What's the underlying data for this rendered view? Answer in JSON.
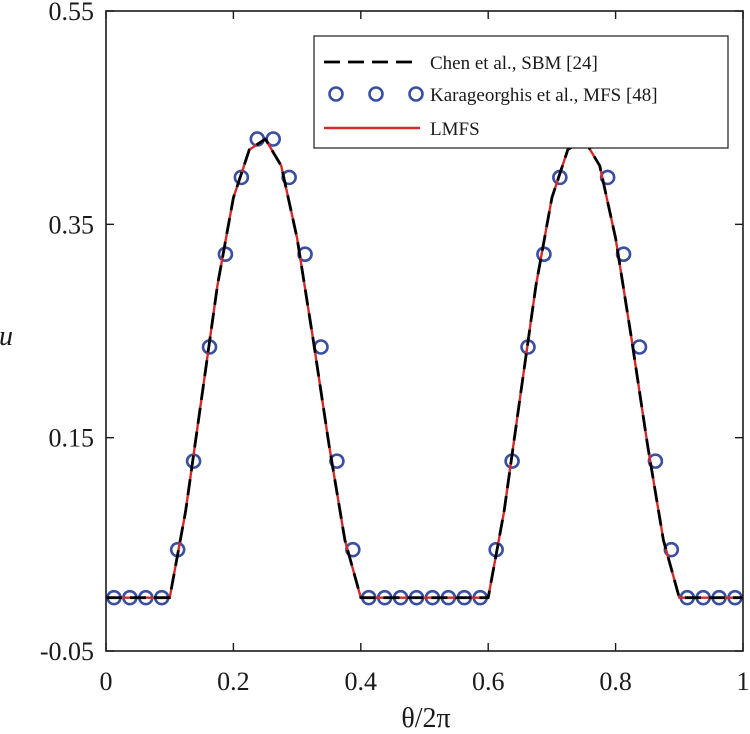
{
  "chart_data": {
    "type": "line",
    "xlabel": "θ/2π",
    "ylabel": "u",
    "xlim": [
      0,
      1
    ],
    "ylim": [
      -0.05,
      0.55
    ],
    "xticks": [
      0,
      0.2,
      0.4,
      0.6,
      0.8,
      1
    ],
    "xtick_labels": [
      "0",
      "0.2",
      "0.4",
      "0.6",
      "0.8",
      "1"
    ],
    "yticks": [
      -0.05,
      0.15,
      0.35,
      0.55
    ],
    "ytick_labels": [
      "-0.05",
      "0.15",
      "0.35",
      "0.55"
    ],
    "grid": false,
    "legend_position": "top-right",
    "series": [
      {
        "name": "Chen et al., SBM [24]",
        "style": "dashed-line",
        "color": "#000000",
        "x": [
          0.0,
          0.05,
          0.1,
          0.125,
          0.15,
          0.175,
          0.2,
          0.225,
          0.25,
          0.275,
          0.3,
          0.325,
          0.35,
          0.375,
          0.4,
          0.45,
          0.5,
          0.55,
          0.6,
          0.625,
          0.65,
          0.675,
          0.7,
          0.725,
          0.75,
          0.775,
          0.8,
          0.825,
          0.85,
          0.875,
          0.9,
          0.95,
          1.0
        ],
        "y": [
          0.0,
          0.0,
          0.0,
          0.081,
          0.187,
          0.293,
          0.375,
          0.42,
          0.43,
          0.405,
          0.337,
          0.243,
          0.144,
          0.054,
          0.0,
          0.0,
          0.0,
          0.0,
          0.0,
          0.081,
          0.187,
          0.293,
          0.375,
          0.42,
          0.43,
          0.405,
          0.337,
          0.243,
          0.144,
          0.054,
          0.0,
          0.0,
          0.0
        ]
      },
      {
        "name": "Karageorghis et al., MFS [48]",
        "style": "open-circles",
        "color": "#3a4fa0",
        "x": [
          0.0125,
          0.0375,
          0.0625,
          0.0875,
          0.1125,
          0.1375,
          0.1625,
          0.1875,
          0.2125,
          0.2375,
          0.2625,
          0.2875,
          0.3125,
          0.3375,
          0.3625,
          0.3875,
          0.4125,
          0.4375,
          0.4625,
          0.4875,
          0.5125,
          0.5375,
          0.5625,
          0.5875,
          0.6125,
          0.6375,
          0.6625,
          0.6875,
          0.7125,
          0.7375,
          0.7625,
          0.7875,
          0.8125,
          0.8375,
          0.8625,
          0.8875,
          0.9125,
          0.9375,
          0.9625,
          0.9875
        ],
        "y": [
          0.0,
          0.0,
          0.0,
          0.0,
          0.045,
          0.128,
          0.235,
          0.322,
          0.394,
          0.43,
          0.43,
          0.394,
          0.322,
          0.235,
          0.128,
          0.045,
          0.0,
          0.0,
          0.0,
          0.0,
          0.0,
          0.0,
          0.0,
          0.0,
          0.045,
          0.128,
          0.235,
          0.322,
          0.394,
          0.43,
          0.43,
          0.394,
          0.322,
          0.235,
          0.128,
          0.045,
          0.0,
          0.0,
          0.0,
          0.0
        ]
      },
      {
        "name": "LMFS",
        "style": "solid-line",
        "color": "#d42a2a",
        "x": [
          0.0,
          0.05,
          0.1,
          0.125,
          0.15,
          0.175,
          0.2,
          0.225,
          0.25,
          0.275,
          0.3,
          0.325,
          0.35,
          0.375,
          0.4,
          0.45,
          0.5,
          0.55,
          0.6,
          0.625,
          0.65,
          0.675,
          0.7,
          0.725,
          0.75,
          0.775,
          0.8,
          0.825,
          0.85,
          0.875,
          0.9,
          0.95,
          1.0
        ],
        "y": [
          0.0,
          0.0,
          0.0,
          0.081,
          0.187,
          0.293,
          0.375,
          0.42,
          0.43,
          0.405,
          0.337,
          0.243,
          0.144,
          0.054,
          0.0,
          0.0,
          0.0,
          0.0,
          0.0,
          0.081,
          0.187,
          0.293,
          0.375,
          0.42,
          0.43,
          0.405,
          0.337,
          0.243,
          0.144,
          0.054,
          0.0,
          0.0,
          0.0
        ]
      }
    ]
  }
}
